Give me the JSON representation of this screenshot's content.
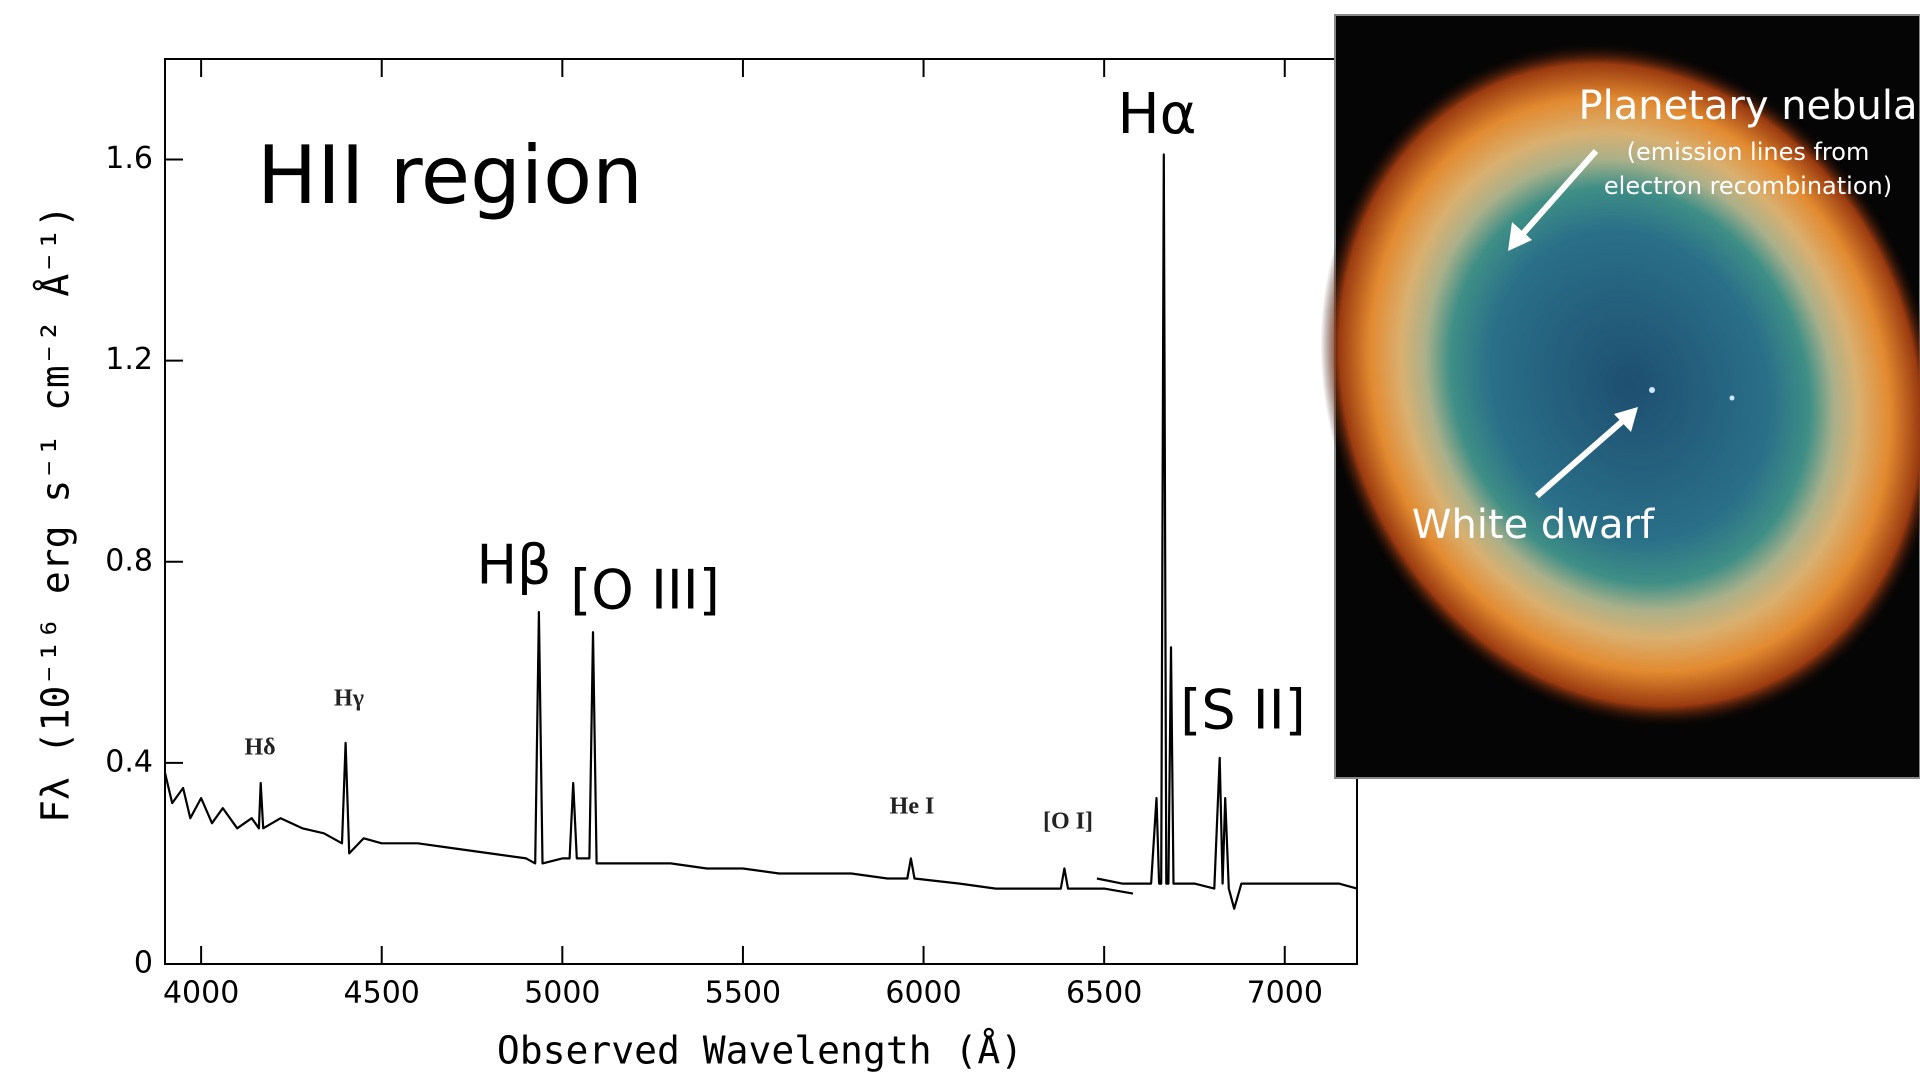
{
  "chart_data": {
    "type": "line",
    "x_label": "Observed Wavelength (Å)",
    "y_label": "Fλ (10⁻¹⁶ erg s⁻¹ cm⁻² Å⁻¹)",
    "xlim": [
      3900,
      7200
    ],
    "ylim": [
      0,
      1.8
    ],
    "xticks": [
      4000,
      4500,
      5000,
      5500,
      6000,
      6500,
      7000
    ],
    "yticks": [
      0,
      0.4,
      0.8,
      1.2,
      1.6
    ],
    "series": [
      {
        "color": "#000000",
        "x": [
          3900,
          3920,
          3950,
          3970,
          4000,
          4030,
          4060,
          4100,
          4140,
          4160,
          4165,
          4172,
          4220,
          4280,
          4340,
          4390,
          4400,
          4410,
          4450,
          4500,
          4600,
          4700,
          4800,
          4900,
          4925,
          4935,
          4945,
          5000,
          5020,
          5030,
          5040,
          5075,
          5085,
          5095,
          5200,
          5300,
          5400,
          5500,
          5600,
          5700,
          5800,
          5900,
          5955,
          5965,
          5975,
          6100,
          6200,
          6300,
          6380,
          6390,
          6400,
          6500,
          6580
        ],
        "values": [
          0.38,
          0.32,
          0.35,
          0.29,
          0.33,
          0.28,
          0.31,
          0.27,
          0.29,
          0.27,
          0.36,
          0.27,
          0.29,
          0.27,
          0.26,
          0.24,
          0.44,
          0.22,
          0.25,
          0.24,
          0.24,
          0.23,
          0.22,
          0.21,
          0.2,
          0.7,
          0.2,
          0.21,
          0.21,
          0.36,
          0.21,
          0.21,
          0.66,
          0.2,
          0.2,
          0.2,
          0.19,
          0.19,
          0.18,
          0.18,
          0.18,
          0.17,
          0.17,
          0.21,
          0.17,
          0.16,
          0.15,
          0.15,
          0.15,
          0.19,
          0.15,
          0.15,
          0.14
        ]
      },
      {
        "color": "#000000",
        "x": [
          6480,
          6550,
          6630,
          6645,
          6652,
          6658,
          6665,
          6672,
          6678,
          6685,
          6692,
          6750,
          6805,
          6820,
          6828,
          6835,
          6845,
          6860,
          6880,
          6950,
          7050,
          7150,
          7200
        ],
        "values": [
          0.17,
          0.16,
          0.16,
          0.33,
          0.16,
          0.16,
          1.61,
          0.16,
          0.16,
          0.63,
          0.16,
          0.16,
          0.15,
          0.41,
          0.16,
          0.33,
          0.15,
          0.11,
          0.16,
          0.16,
          0.16,
          0.16,
          0.15
        ]
      }
    ],
    "annotations": [
      "HII region",
      "Hα",
      "Hβ",
      "[O III]",
      "[S II]",
      "Hδ",
      "Hγ",
      "He I",
      "[O I]"
    ]
  },
  "image": {
    "title": "Planetary nebula",
    "note": [
      "(emission lines from",
      "electron recombination)"
    ],
    "label": "White dwarf"
  }
}
